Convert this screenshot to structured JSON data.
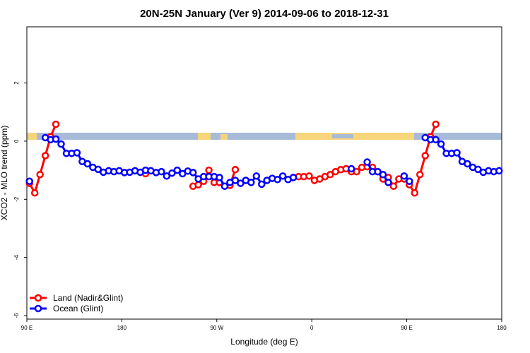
{
  "chart_data": {
    "type": "line",
    "title": "20N-25N January (Ver 9)   2014-09-06 to 2018-12-31",
    "xlabel": "Longitude (deg E)",
    "ylabel": "XCO2 - MLO trend (ppm)",
    "x": [
      92.5,
      97.5,
      102.5,
      107.5,
      112.5,
      117.5,
      122.5,
      127.5,
      132.5,
      137.5,
      142.5,
      147.5,
      152.5,
      157.5,
      162.5,
      167.5,
      172.5,
      177.5,
      182.5,
      187.5,
      192.5,
      197.5,
      202.5,
      207.5,
      212.5,
      217.5,
      222.5,
      227.5,
      232.5,
      237.5,
      242.5,
      247.5,
      252.5,
      257.5,
      262.5,
      267.5,
      272.5,
      277.5,
      282.5,
      287.5,
      292.5,
      297.5,
      302.5,
      307.5,
      312.5,
      317.5,
      322.5,
      327.5,
      332.5,
      337.5,
      342.5,
      347.5,
      352.5,
      357.5,
      362.5,
      367.5,
      372.5,
      377.5,
      382.5,
      387.5,
      392.5,
      397.5,
      402.5,
      407.5,
      412.5,
      417.5,
      422.5,
      427.5,
      432.5,
      437.5,
      442.5,
      447.5,
      452.5,
      457.5,
      462.5,
      467.5,
      472.5,
      477.5,
      482.5,
      487.5,
      492.5,
      497.5,
      502.5,
      507.5,
      512.5,
      517.5,
      522.5,
      527.5,
      532.5,
      537.5
    ],
    "series": [
      {
        "name": "Land (Nadir&Glint)",
        "color": "#ff0000",
        "values": [
          -1.45,
          -1.78,
          -1.15,
          -0.5,
          0.15,
          0.58,
          null,
          null,
          null,
          null,
          null,
          null,
          null,
          null,
          null,
          null,
          null,
          null,
          null,
          null,
          null,
          null,
          -1.12,
          null,
          null,
          null,
          null,
          null,
          null,
          null,
          null,
          -1.55,
          -1.5,
          -1.38,
          -1.0,
          -1.42,
          -1.42,
          null,
          -1.52,
          -0.98,
          null,
          null,
          null,
          null,
          null,
          null,
          null,
          null,
          null,
          null,
          -1.25,
          -1.22,
          -1.22,
          -1.2,
          -1.35,
          -1.3,
          -1.22,
          -1.15,
          -1.05,
          -0.98,
          -0.95,
          -1.05,
          -1.05,
          -0.9,
          -0.88,
          -0.9,
          -1.05,
          -1.3,
          -1.25,
          -1.55,
          -1.3,
          -1.3,
          -1.5,
          -1.78,
          -1.15,
          -0.5,
          0.15,
          0.58,
          null,
          null,
          null,
          null,
          null,
          null,
          null,
          null,
          null,
          null,
          null,
          null
        ]
      },
      {
        "name": "Ocean (Glint)",
        "color": "#0000ff",
        "values": [
          -1.38,
          null,
          null,
          0.12,
          0.05,
          0.07,
          -0.1,
          -0.42,
          -0.42,
          -0.4,
          -0.7,
          -0.78,
          -0.9,
          -0.97,
          -1.07,
          -1.02,
          -1.05,
          -1.02,
          -1.08,
          -1.07,
          -1.02,
          -1.07,
          -1.0,
          -1.02,
          -1.08,
          -1.05,
          -1.2,
          -1.1,
          -1.0,
          -1.12,
          -1.03,
          -1.08,
          -1.3,
          -1.22,
          -1.22,
          -1.22,
          -1.25,
          -1.55,
          -1.42,
          -1.35,
          -1.45,
          -1.35,
          -1.42,
          -1.2,
          -1.48,
          -1.35,
          -1.28,
          -1.32,
          -1.2,
          -1.32,
          -1.25,
          null,
          null,
          null,
          null,
          null,
          null,
          null,
          null,
          null,
          null,
          -0.95,
          null,
          null,
          -0.72,
          -1.05,
          -1.05,
          -1.15,
          -1.42,
          null,
          null,
          -1.2,
          -1.38,
          null,
          null,
          0.12,
          0.05,
          0.05,
          -0.1,
          -0.42,
          -0.42,
          -0.4,
          -0.7,
          -0.78,
          -0.9,
          -0.97,
          -1.07,
          -1.02,
          -1.05,
          -1.02
        ]
      }
    ],
    "xlim": [
      90,
      540
    ],
    "ylim": [
      -6.12,
      3.93
    ],
    "xticks": [
      {
        "value": 90,
        "label": "90 E"
      },
      180,
      {
        "value": 270,
        "label": "90 W"
      },
      {
        "value": 360,
        "label": "0"
      },
      {
        "value": 450,
        "label": "90 E"
      },
      {
        "value": 540,
        "label": "180"
      }
    ],
    "yticks": [
      -6,
      -4,
      -2,
      0,
      2
    ],
    "legend": "bottom-left"
  }
}
